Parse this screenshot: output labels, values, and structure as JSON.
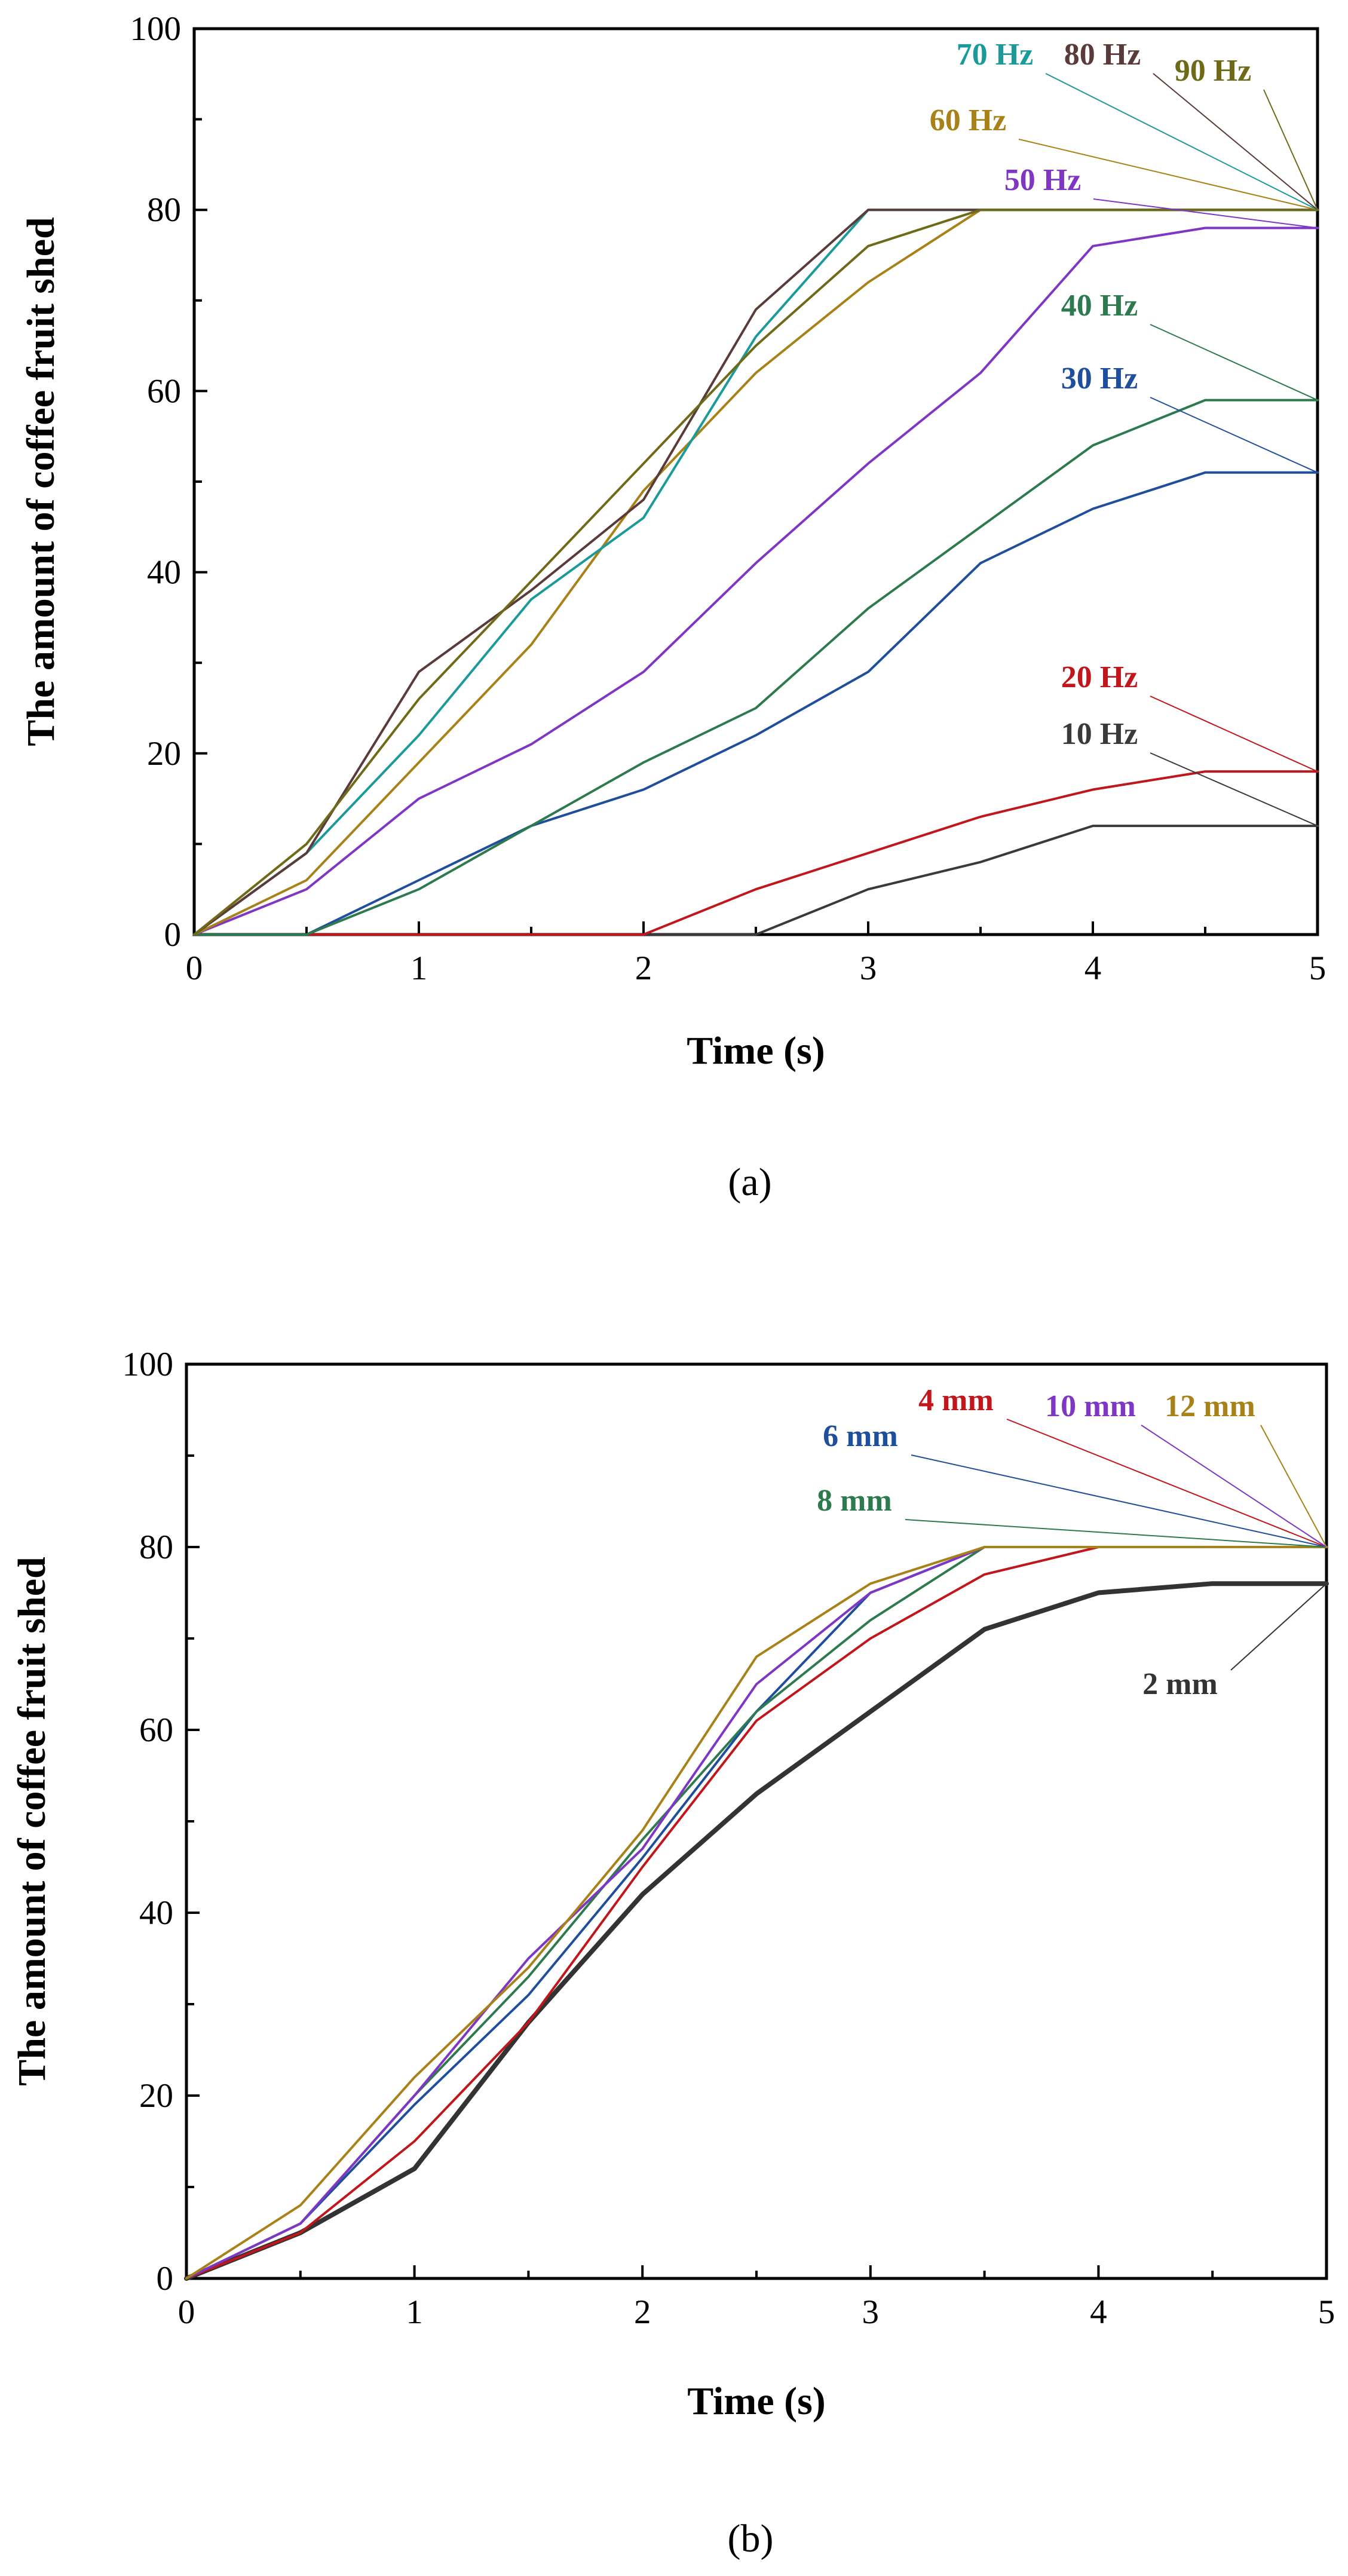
{
  "chart_data": [
    {
      "type": "line",
      "panel_label": "(a)",
      "xlabel": "Time (s)",
      "ylabel": "The amount of coffee fruit shed",
      "xlim": [
        0,
        5
      ],
      "ylim": [
        0,
        100
      ],
      "xticks": [
        "0",
        "1",
        "2",
        "3",
        "4",
        "5"
      ],
      "yticks": [
        "0",
        "20",
        "40",
        "60",
        "80",
        "100"
      ],
      "x": [
        0,
        0.5,
        1,
        1.5,
        2,
        2.5,
        3,
        3.5,
        4,
        4.5,
        5
      ],
      "grid": false,
      "series": [
        {
          "name": "10 Hz",
          "color": "#3a3a3a",
          "values": [
            0,
            0,
            0,
            0,
            0,
            0,
            5,
            8,
            12,
            12,
            12
          ]
        },
        {
          "name": "20 Hz",
          "color": "#c0161c",
          "values": [
            0,
            0,
            0,
            0,
            0,
            5,
            9,
            13,
            16,
            18,
            18
          ]
        },
        {
          "name": "30 Hz",
          "color": "#1f4f9c",
          "values": [
            0,
            0,
            6,
            12,
            16,
            22,
            29,
            41,
            47,
            51,
            51
          ]
        },
        {
          "name": "40 Hz",
          "color": "#2d7a4e",
          "values": [
            0,
            0,
            5,
            12,
            19,
            25,
            36,
            45,
            54,
            59,
            59
          ]
        },
        {
          "name": "50 Hz",
          "color": "#7f36c4",
          "values": [
            0,
            5,
            15,
            21,
            29,
            41,
            52,
            62,
            76,
            78,
            78
          ]
        },
        {
          "name": "60 Hz",
          "color": "#a88118",
          "values": [
            0,
            6,
            19,
            32,
            49,
            62,
            72,
            80,
            80,
            80,
            80
          ]
        },
        {
          "name": "70 Hz",
          "color": "#1b9a9a",
          "values": [
            0,
            9,
            22,
            37,
            46,
            66,
            80,
            80,
            80,
            80,
            80
          ]
        },
        {
          "name": "80 Hz",
          "color": "#5b3a3a",
          "values": [
            0,
            9,
            29,
            38,
            48,
            69,
            80,
            80,
            80,
            80,
            80
          ]
        },
        {
          "name": "90 Hz",
          "color": "#6e6a18",
          "values": [
            0,
            10,
            26,
            39,
            52,
            65,
            76,
            80,
            80,
            80,
            80
          ]
        }
      ]
    },
    {
      "type": "line",
      "panel_label": "(b)",
      "xlabel": "Time (s)",
      "ylabel": "The amount of coffee fruit shed",
      "xlim": [
        0,
        5
      ],
      "ylim": [
        0,
        100
      ],
      "xticks": [
        "0",
        "1",
        "2",
        "3",
        "4",
        "5"
      ],
      "yticks": [
        "0",
        "20",
        "40",
        "60",
        "80",
        "100"
      ],
      "x": [
        0,
        0.5,
        1,
        1.5,
        2,
        2.5,
        3,
        3.5,
        4,
        4.5,
        5
      ],
      "grid": false,
      "series": [
        {
          "name": "2 mm",
          "color": "#333333",
          "values": [
            0,
            5,
            12,
            28,
            42,
            53,
            62,
            71,
            75,
            76,
            76
          ]
        },
        {
          "name": "4 mm",
          "color": "#c0161c",
          "values": [
            0,
            5,
            15,
            28,
            45,
            61,
            70,
            77,
            80,
            80,
            80
          ]
        },
        {
          "name": "6 mm",
          "color": "#1f4f9c",
          "values": [
            0,
            6,
            19,
            31,
            46,
            62,
            75,
            80,
            80,
            80,
            80
          ]
        },
        {
          "name": "8 mm",
          "color": "#2d7a4e",
          "values": [
            0,
            6,
            20,
            33,
            48,
            62,
            72,
            80,
            80,
            80,
            80
          ]
        },
        {
          "name": "10 mm",
          "color": "#7f36c4",
          "values": [
            0,
            6,
            20,
            35,
            47,
            65,
            75,
            80,
            80,
            80,
            80
          ]
        },
        {
          "name": "12 mm",
          "color": "#a88118",
          "values": [
            0,
            8,
            22,
            34,
            49,
            68,
            76,
            80,
            80,
            80,
            80
          ]
        }
      ]
    }
  ]
}
